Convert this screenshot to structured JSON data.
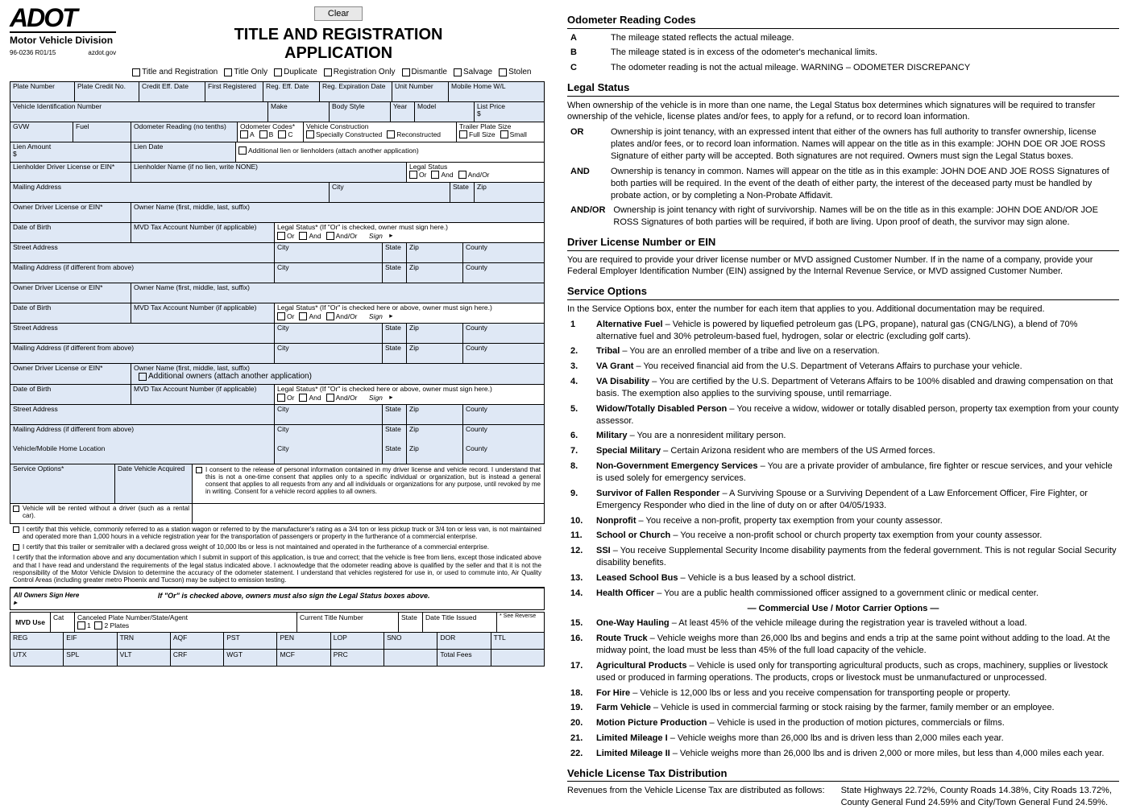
{
  "header": {
    "logo": "ADOT",
    "logo_sub": "Motor Vehicle Division",
    "form_no": "96-0236 R01/15",
    "site": "azdot.gov",
    "title1": "TITLE AND REGISTRATION",
    "title2": "APPLICATION",
    "clear": "Clear",
    "checks": [
      "Title and Registration",
      "Title Only",
      "Duplicate",
      "Registration Only",
      "Dismantle",
      "Salvage",
      "Stolen"
    ]
  },
  "fields": {
    "plate_no": "Plate Number",
    "plate_credit": "Plate Credit No.",
    "credit_eff": "Credit Eff. Date",
    "first_reg": "First Registered",
    "reg_eff": "Reg. Eff. Date",
    "reg_exp": "Reg. Expiration Date",
    "unit_no": "Unit Number",
    "mobile_wl": "Mobile Home W/L",
    "vin": "Vehicle Identification Number",
    "make": "Make",
    "body": "Body Style",
    "year": "Year",
    "model": "Model",
    "list_price": "List Price",
    "dollar": "$",
    "gvw": "GVW",
    "fuel": "Fuel",
    "odo": "Odometer Reading (no tenths)",
    "odo_codes": "Odometer Codes*",
    "abc": [
      "A",
      "B",
      "C"
    ],
    "veh_const": "Vehicle Construction",
    "spec_const": "Specially Constructed",
    "recon": "Reconstructed",
    "trailer": "Trailer Plate Size",
    "full": "Full Size",
    "small": "Small",
    "lien_amt": "Lien Amount",
    "lien_date": "Lien Date",
    "addl_lien": "Additional lien or lienholders (attach another application)",
    "lien_dl": "Lienholder Driver License or EIN*",
    "lien_name": "Lienholder Name (if no lien, write NONE)",
    "legal_status": "Legal Status",
    "or": "Or",
    "and": "And",
    "andor": "And/Or",
    "mail_addr": "Mailing Address",
    "city": "City",
    "state": "State",
    "zip": "Zip",
    "county": "County",
    "owner_dl": "Owner Driver License or EIN*",
    "owner_name": "Owner Name (first, middle, last, suffix)",
    "dob": "Date of Birth",
    "mvd_tax": "MVD Tax Account Number (if applicable)",
    "ls_owner": "Legal Status* (If \"Or\" is checked, owner must sign here.)",
    "ls_owner2": "Legal Status* (If \"Or\" is checked here or above, owner must sign here.)",
    "sign": "Sign",
    "street": "Street Address",
    "mail_diff": "Mailing Address (if different from above)",
    "addl_owners": "Additional owners (attach another application)",
    "veh_loc": "Vehicle/Mobile Home Location",
    "svc_opt": "Service Options*",
    "date_acq": "Date Vehicle Acquired",
    "rental": "Vehicle will be rented without a driver (such as a rental car).",
    "consent": "I consent to the release of personal information contained in my driver license and vehicle record. I understand that this is not a one-time consent that applies only to a specific individual or organization, but is instead a general consent that applies to all requests from any and all individuals or organizations for any purpose, until revoked by me in writing. Consent for a vehicle record applies to all owners.",
    "cert1": "I certify that this vehicle, commonly referred to as a station wagon or referred to by the manufacturer's rating as a 3/4 ton or less pickup truck or 3/4 ton or less van, is not maintained and operated more than 1,000 hours in a vehicle registration year for the transportation of passengers or property in the furtherance of a commercial enterprise.",
    "cert2": "I certify that this trailer or semitrailer with a declared gross weight of 10,000 lbs or less is not maintained and operated in the furtherance of a commercial enterprise.",
    "cert3": "I certify that the information above and any documentation which I submit in support of this application, is true and correct; that the vehicle is free from liens, except those indicated above and that I have read and understand the requirements of the legal status indicated above. I acknowledge that the odometer reading above is qualified by the seller and that it is not the responsibility of the Motor Vehicle Division to determine the accuracy of the odometer statement. I understand that vehicles registered for use in, or used to commute into, Air Quality Control Areas (including greater metro Phoenix and Tucson) may be subject to emission testing.",
    "sign_note": "If \"Or\" is checked above, owners must also sign the Legal Status boxes above.",
    "sign_here": "All Owners Sign Here",
    "arrow": "▸"
  },
  "mvd": {
    "label": "MVD Use",
    "cat": "Cat",
    "canceled": "Canceled Plate Number/State/Agent",
    "plates12": [
      "1",
      "2 Plates"
    ],
    "cur_title": "Current Title Number",
    "date_issued": "Date Title Issued",
    "see_rev": "* See Reverse",
    "row2": [
      "REG",
      "EIF",
      "TRN",
      "AQF",
      "PST",
      "PEN",
      "LOP",
      "SNO",
      "DOR",
      "TTL"
    ],
    "row3": [
      "UTX",
      "SPL",
      "VLT",
      "CRF",
      "WGT",
      "MCF",
      "PRC",
      "",
      "Total Fees",
      ""
    ]
  },
  "right": {
    "odo_title": "Odometer Reading Codes",
    "odo": [
      {
        "k": "A",
        "t": "The mileage stated reflects the actual mileage."
      },
      {
        "k": "B",
        "t": "The mileage stated is in excess of the odometer's mechanical limits."
      },
      {
        "k": "C",
        "t": "The odometer reading is not the actual mileage. WARNING – ODOMETER DISCREPANCY"
      }
    ],
    "legal_title": "Legal Status",
    "legal_intro": "When ownership of the vehicle is in more than one name, the Legal Status box determines which signatures will be required to transfer ownership of the vehicle, license plates and/or fees, to apply for a refund, or to record loan information.",
    "legal": [
      {
        "k": "OR",
        "t": "Ownership is joint tenancy, with an expressed intent that either of the owners has full authority to transfer ownership, license plates and/or fees, or to record loan information. Names will appear on the title as in this example:  JOHN DOE OR JOE ROSS  Signature of either party will be accepted. Both signatures are not required. Owners must sign the Legal Status boxes."
      },
      {
        "k": "AND",
        "t": "Ownership is tenancy in common. Names will appear on the title as in this example:  JOHN DOE AND JOE ROSS  Signatures of both parties will be required. In the event of the death of either party, the interest of the deceased party must be handled by probate action, or by completing a Non-Probate Affidavit."
      },
      {
        "k": "AND/OR",
        "t": "Ownership is joint tenancy with right of survivorship. Names will be on the title as in this example:  JOHN DOE AND/OR JOE ROSS  Signatures of both parties will be required, if both are living. Upon proof of death, the survivor may sign alone."
      }
    ],
    "dl_title": "Driver License Number or EIN",
    "dl_text": "You are required to provide your driver license number or MVD assigned Customer Number. If in the name of a company, provide your Federal Employer Identification Number (EIN) assigned by the Internal Revenue Service, or MVD assigned Customer Number.",
    "svc_title": "Service Options",
    "svc_intro": "In the Service Options box, enter the number for each item that applies to you. Additional documentation may be required.",
    "svc": [
      {
        "k": "1",
        "b": "Alternative Fuel",
        "t": " – Vehicle is powered by liquefied petroleum gas (LPG, propane), natural gas (CNG/LNG), a blend of 70% alternative fuel and 30% petroleum-based fuel, hydrogen, solar or electric (excluding golf carts)."
      },
      {
        "k": "2.",
        "b": "Tribal",
        "t": " – You are an enrolled member of a tribe and live on a reservation."
      },
      {
        "k": "3.",
        "b": "VA Grant",
        "t": " – You received financial aid from the U.S. Department of Veterans Affairs to purchase your vehicle."
      },
      {
        "k": "4.",
        "b": "VA Disability",
        "t": " – You are certified by the U.S. Department of Veterans Affairs to be 100% disabled and drawing compensation on that basis. The exemption also applies to the surviving spouse, until remarriage."
      },
      {
        "k": "5.",
        "b": "Widow/Totally Disabled Person",
        "t": " – You receive a widow, widower or totally disabled person, property tax exemption from your county assessor."
      },
      {
        "k": "6.",
        "b": "Military",
        "t": " – You are a nonresident military person."
      },
      {
        "k": "7.",
        "b": "Special Military",
        "t": " – Certain Arizona resident who are members of the US Armed forces."
      },
      {
        "k": "8.",
        "b": "Non-Government Emergency Services",
        "t": " – You are a private provider of ambulance, fire fighter or rescue services, and your vehicle is used solely for emergency services."
      },
      {
        "k": "9.",
        "b": "Survivor of Fallen Responder",
        "t": " – A Surviving Spouse or a Surviving Dependent of a Law Enforcement Officer, Fire Fighter, or Emergency Responder who died in the line of duty on or after 04/05/1933."
      },
      {
        "k": "10.",
        "b": "Nonprofit",
        "t": " – You receive a non-profit, property tax exemption from your county assessor."
      },
      {
        "k": "11.",
        "b": "School or Church",
        "t": " – You receive a non-profit school or church property tax exemption from your county assessor."
      },
      {
        "k": "12.",
        "b": "SSI",
        "t": " – You receive Supplemental Security Income disability payments from the federal government. This is not regular Social Security disability benefits."
      },
      {
        "k": "13.",
        "b": "Leased School Bus",
        "t": " – Vehicle is a bus leased by a school district."
      },
      {
        "k": "14.",
        "b": "Health Officer",
        "t": " – You are a public health commissioned officer assigned to a government clinic or medical center."
      }
    ],
    "commercial": "— Commercial Use / Motor Carrier Options —",
    "svc2": [
      {
        "k": "15.",
        "b": "One-Way Hauling",
        "t": " – At least 45% of the vehicle mileage during the registration year is traveled without a load."
      },
      {
        "k": "16.",
        "b": "Route Truck",
        "t": " – Vehicle weighs more than 26,000 lbs and begins and ends a trip at the same point without adding to the load. At the midway point, the load must be less than 45% of the full load capacity of the vehicle."
      },
      {
        "k": "17.",
        "b": "Agricultural Products",
        "t": " – Vehicle is used only for transporting agricultural products, such as crops, machinery, supplies or livestock used or produced in farming operations. The products, crops or livestock must be unmanufactured or unprocessed."
      },
      {
        "k": "18.",
        "b": "For Hire",
        "t": " – Vehicle is 12,000 lbs or less and you receive compensation for transporting people or property."
      },
      {
        "k": "19.",
        "b": "Farm Vehicle",
        "t": " – Vehicle is used in commercial farming or stock raising by the farmer, family member or an employee."
      },
      {
        "k": "20.",
        "b": "Motion Picture Production",
        "t": " – Vehicle is used in the production of motion pictures, commercials or films."
      },
      {
        "k": "21.",
        "b": "Limited Mileage I",
        "t": " – Vehicle weighs more than 26,000 lbs and is driven less than 2,000 miles each year."
      },
      {
        "k": "22.",
        "b": "Limited Mileage II",
        "t": " – Vehicle weighs more than 26,000 lbs and is driven 2,000 or more miles, but less than 4,000 miles each year."
      }
    ],
    "vlt_title": "Vehicle License Tax Distribution",
    "vlt_text1": "Revenues from the Vehicle License Tax are distributed as follows:",
    "vlt_text2": "State Highways 22.72%, County Roads 14.38%, City Roads 13.72%, County General Fund 24.59% and City/Town General Fund 24.59%."
  }
}
